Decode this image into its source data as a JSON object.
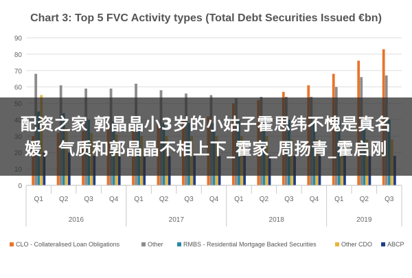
{
  "chart_data": {
    "type": "bar",
    "title": "Chart 3: Top 5 FVC Activity types (Total Debt Securities Issued €bn)",
    "xlabel": "",
    "ylabel": "",
    "ylim": [
      0,
      90
    ],
    "yticks": [
      0,
      10,
      20,
      30,
      40,
      50,
      60,
      70,
      80,
      90
    ],
    "grid": true,
    "legend_position": "bottom",
    "categories": [
      "Q1",
      "Q2",
      "Q3",
      "Q4",
      "Q1",
      "Q2",
      "Q3",
      "Q4",
      "Q1",
      "Q2",
      "Q3",
      "Q4",
      "Q1",
      "Q2",
      "Q3"
    ],
    "groups": [
      {
        "label": "2016",
        "count": 4
      },
      {
        "label": "2017",
        "count": 4
      },
      {
        "label": "2018",
        "count": 4
      },
      {
        "label": "2019",
        "count": 3
      }
    ],
    "series": [
      {
        "name": "CLO - Collateralised Loan Obligations",
        "color": "#e8742a",
        "values": [
          30,
          32,
          33,
          35,
          36,
          38,
          40,
          42,
          50,
          52,
          57,
          61,
          68,
          76,
          83
        ]
      },
      {
        "name": "Other",
        "color": "#8c8c8c",
        "values": [
          68,
          61,
          59,
          59,
          62,
          58,
          56,
          55,
          53,
          54,
          54,
          54,
          60,
          66,
          67
        ]
      },
      {
        "name": "RMBS - Residential Mortgage Backed Securities",
        "color": "#2a8aa6",
        "values": [
          45,
          44,
          40,
          39,
          38,
          38,
          38,
          38,
          40,
          40,
          40,
          38,
          40,
          40,
          40
        ]
      },
      {
        "name": "Other CDO",
        "color": "#e8b63a",
        "values": [
          55,
          35,
          32,
          31,
          30,
          30,
          30,
          30,
          30,
          30,
          28,
          28,
          28,
          28,
          28
        ]
      },
      {
        "name": "ABCP",
        "color": "#1f3f8a",
        "values": [
          20,
          20,
          18,
          18,
          18,
          18,
          18,
          18,
          18,
          18,
          18,
          18,
          18,
          18,
          18
        ]
      }
    ]
  },
  "overlay": {
    "text": "配资之家 郭晶晶小3岁的小姑子霍思纬不愧是真名媛，气质和郭晶晶不相上下_霍家_周扬青_霍启刚"
  }
}
